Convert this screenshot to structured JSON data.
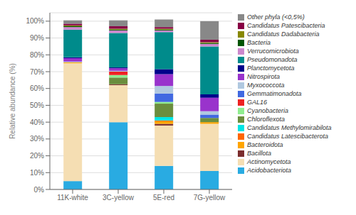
{
  "chart_data": {
    "type": "bar",
    "stacked": true,
    "grid": true,
    "legend": "right",
    "categories": [
      "11K-white",
      "3C-yellow",
      "5E-red",
      "7G-yellow"
    ],
    "ylabel": "Relative abundance (%)",
    "ylim": [
      0,
      105
    ],
    "yticks": [
      {
        "value": 0,
        "label": "0%"
      },
      {
        "value": 10,
        "label": "10%"
      },
      {
        "value": 20,
        "label": "20%"
      },
      {
        "value": 30,
        "label": "30%"
      },
      {
        "value": 40,
        "label": "40%"
      },
      {
        "value": 50,
        "label": "50%"
      },
      {
        "value": 60,
        "label": "60%"
      },
      {
        "value": 70,
        "label": "70%"
      },
      {
        "value": 80,
        "label": "80%"
      },
      {
        "value": 90,
        "label": "90%"
      },
      {
        "value": 100,
        "label": "100%"
      }
    ],
    "series": [
      {
        "name": "Acidobacteriota",
        "color": "#29ABE2",
        "values": [
          5.0,
          40.0,
          14.0,
          11.0
        ]
      },
      {
        "name": "Actinomycetota",
        "color": "#F5DEB3",
        "values": [
          70.0,
          22.0,
          24.0,
          28.0
        ]
      },
      {
        "name": "Bacillota",
        "color": "#7B2D2D",
        "values": [
          0.0,
          0.5,
          1.0,
          0.0
        ]
      },
      {
        "name": "Bacteroidota",
        "color": "#FFA500",
        "values": [
          0.5,
          0.0,
          1.5,
          1.0
        ]
      },
      {
        "name": "Candidatus Latescibacterota",
        "color": "#FF6600",
        "values": [
          0.0,
          0.0,
          0.5,
          0.0
        ]
      },
      {
        "name": "Candidatus Methylomirabilota",
        "color": "#00E5E5",
        "values": [
          0.0,
          0.0,
          2.0,
          0.0
        ]
      },
      {
        "name": "Chloroflexota",
        "color": "#6B8E3E",
        "values": [
          0.0,
          4.0,
          8.0,
          2.5
        ]
      },
      {
        "name": "Cyanobacteria",
        "color": "#90EE90",
        "values": [
          0.0,
          1.5,
          1.0,
          0.0
        ]
      },
      {
        "name": "GAL16",
        "color": "#EE2222",
        "values": [
          0.0,
          2.0,
          0.0,
          0.0
        ]
      },
      {
        "name": "Gemmatimonadota",
        "color": "#4169E1",
        "values": [
          0.0,
          0.0,
          5.0,
          2.0
        ]
      },
      {
        "name": "Myxococcota",
        "color": "#B0C8E0",
        "values": [
          0.5,
          0.5,
          4.5,
          2.0
        ]
      },
      {
        "name": "Nitrospirota",
        "color": "#9933CC",
        "values": [
          2.0,
          1.5,
          7.0,
          8.0
        ]
      },
      {
        "name": "Planctomycetota",
        "color": "#00008B",
        "values": [
          0.5,
          0.5,
          3.0,
          2.0
        ]
      },
      {
        "name": "Pseudomonadota",
        "color": "#008B8B",
        "values": [
          16.5,
          20.5,
          22.0,
          28.5
        ]
      },
      {
        "name": "Verrucomicrobiota",
        "color": "#CC88CC",
        "values": [
          1.5,
          1.5,
          1.0,
          1.5
        ]
      },
      {
        "name": "Bacteria",
        "color": "#005500",
        "values": [
          0.5,
          0.5,
          0.5,
          0.5
        ]
      },
      {
        "name": "Candidatus Dadabacteria",
        "color": "#888800",
        "values": [
          0.5,
          0.5,
          0.5,
          0.5
        ]
      },
      {
        "name": "Candidatus Patescibacteria",
        "color": "#880044",
        "values": [
          1.0,
          1.5,
          1.0,
          1.5
        ]
      },
      {
        "name": "Other phyla (<0,5%)",
        "color": "#888888",
        "values": [
          2.0,
          3.5,
          4.5,
          11.0
        ]
      }
    ]
  }
}
